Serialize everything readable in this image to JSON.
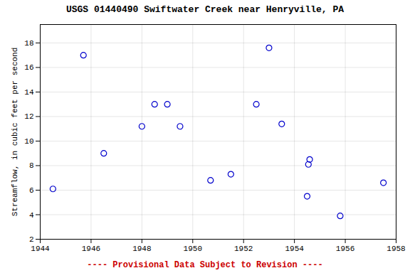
{
  "chart_data": {
    "type": "scatter",
    "title": "USGS 01440490 Swiftwater Creek near Henryville, PA",
    "xlabel": "---- Provisional Data Subject to Revision ----",
    "ylabel": "Streamflow, in cubic feet per second",
    "x": [
      1944.5,
      1945.7,
      1946.5,
      1948.0,
      1948.5,
      1949.0,
      1949.5,
      1950.7,
      1951.5,
      1952.5,
      1953.0,
      1953.5,
      1954.5,
      1954.6,
      1955.8,
      1957.5,
      1954.55
    ],
    "values": [
      6.1,
      17.0,
      9.0,
      11.2,
      13.0,
      13.0,
      11.2,
      6.8,
      7.3,
      13.0,
      17.6,
      11.4,
      5.5,
      8.5,
      3.9,
      6.6,
      8.1
    ],
    "color": "#0000CC",
    "marker": "o",
    "xlim": [
      1944,
      1958
    ],
    "ylim": [
      2,
      19.5
    ],
    "xticks": [
      1944,
      1946,
      1948,
      1950,
      1952,
      1954,
      1956,
      1958
    ],
    "yticks": [
      2,
      4,
      6,
      8,
      10,
      12,
      14,
      16,
      18
    ],
    "grid": true
  }
}
